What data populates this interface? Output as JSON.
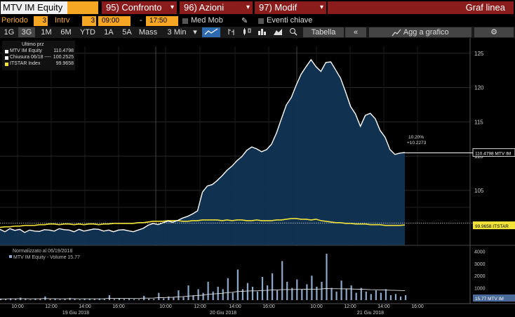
{
  "header": {
    "ticker": "MTV IM Equity",
    "menu_confronto": "95) Confronto",
    "menu_azioni": "96) Azioni",
    "menu_modif": "97) Modif",
    "title": "Graf linea"
  },
  "settings": {
    "periodo_label": "Periodo",
    "periodo_value": "3",
    "intrv_label": "Intrv",
    "intrv_value": "3",
    "start_time": "09:00",
    "dash": "-",
    "end_time": "17:50",
    "med_mob": "Med Mob",
    "eventi": "Eventi chiave"
  },
  "toolbar": {
    "periods": [
      "1G",
      "3G",
      "1M",
      "6M",
      "YTD",
      "1A",
      "5A",
      "Mass",
      "3 Min"
    ],
    "tabella": "Tabella",
    "back": "«",
    "agg": "Agg a grafico",
    "gear": "⚙"
  },
  "legend": {
    "header": "Ultimo prz",
    "items": [
      {
        "name": "MTV IM Equity",
        "value": "110.4798",
        "color": "#ffffff"
      },
      {
        "name": "Chiusura 06/18 ----",
        "value": "100.2525",
        "color": "#ffffff"
      },
      {
        "name": "ITSTAR Index",
        "value": "99.9658",
        "color": "#f2e33a"
      }
    ]
  },
  "lower_legend": {
    "line1": "Normalizzato al 06/19/2018",
    "line2": "MTV IM Equity - Volume 15.77"
  },
  "annotations": {
    "pct": "10.20%",
    "chg": "+10.2273",
    "mtv_tag": "110.4798 MTV IM",
    "itstar_tag": "99.9658  ITSTAR",
    "vol_tag": "15.77 MTV IM"
  },
  "chart_data": {
    "type": "line",
    "price_axis": {
      "ticks": [
        105,
        110,
        115,
        120,
        125
      ],
      "range": [
        97,
        126
      ]
    },
    "volume_axis": {
      "ticks": [
        1000,
        2000,
        3000,
        4000
      ],
      "range": [
        0,
        4200
      ]
    },
    "time_ticks": [
      "10:00",
      "12:00",
      "14:00",
      "16:00",
      "10:00",
      "12:00",
      "14:00",
      "16:00",
      "10:00",
      "12:00",
      "14:00",
      "16:00"
    ],
    "date_labels": [
      "19 Giu 2018",
      "20 Giu 2018",
      "21 Giu 2018"
    ],
    "series": [
      {
        "name": "MTV IM Equity",
        "color": "#ffffff",
        "fill": "#123454",
        "values": [
          99.3,
          99.0,
          99.4,
          99.2,
          99.3,
          98.9,
          99.2,
          99.1,
          99.0,
          99.3,
          99.2,
          99.1,
          99.4,
          99.3,
          99.2,
          99.0,
          99.3,
          99.1,
          99.2,
          99.4,
          99.3,
          99.1,
          99.2,
          99.0,
          99.2,
          99.3,
          99.1,
          99.0,
          99.2,
          99.5,
          99.9,
          100.2,
          100.0,
          100.3,
          100.5,
          100.4,
          100.6,
          101.0,
          101.2,
          101.6,
          102.0,
          104.8,
          105.6,
          105.9,
          106.4,
          107.2,
          107.9,
          108.6,
          109.3,
          110.0,
          110.8,
          111.4,
          111.0,
          110.7,
          110.9,
          111.8,
          113.3,
          115.5,
          117.4,
          118.6,
          120.3,
          122.0,
          123.0,
          124.1,
          123.0,
          122.4,
          123.6,
          123.8,
          122.5,
          121.4,
          119.3,
          117.3,
          116.1,
          114.4,
          115.9,
          116.3,
          115.4,
          113.8,
          112.7,
          111.0,
          110.2,
          110.5,
          110.4798
        ]
      },
      {
        "name": "ITSTAR Index",
        "color": "#f2e33a",
        "values": [
          99.6,
          99.7,
          99.7,
          99.8,
          99.8,
          99.9,
          99.9,
          99.9,
          100.0,
          100.0,
          100.1,
          100.1,
          100.0,
          100.1,
          100.1,
          100.0,
          100.1,
          100.0,
          100.1,
          100.1,
          100.0,
          100.1,
          100.1,
          100.2,
          100.2,
          100.2,
          100.2,
          100.2,
          100.3,
          100.3,
          100.4,
          100.5,
          100.5,
          100.5,
          100.6,
          100.6,
          100.6,
          100.5,
          100.5,
          100.6,
          100.6,
          100.7,
          100.7,
          100.7,
          100.7,
          100.6,
          100.7,
          100.6,
          100.7,
          100.7,
          100.6,
          100.6,
          100.7,
          100.6,
          100.6,
          100.6,
          100.7,
          100.7,
          100.8,
          100.9,
          100.9,
          100.8,
          100.8,
          100.7,
          100.8,
          100.6,
          100.5,
          100.4,
          100.3,
          100.3,
          100.2,
          100.2,
          100.1,
          100.1,
          100.1,
          100.0,
          100.0,
          100.0,
          99.9,
          99.9,
          99.9,
          99.9,
          99.9658
        ]
      }
    ],
    "prev_close": 100.2525,
    "volume": [
      120,
      80,
      150,
      90,
      200,
      110,
      60,
      140,
      90,
      300,
      80,
      120,
      70,
      100,
      180,
      90,
      60,
      130,
      100,
      80,
      120,
      90,
      400,
      100,
      150,
      90,
      110,
      80,
      70,
      350,
      120,
      90,
      600,
      150,
      300,
      200,
      800,
      250,
      1200,
      400,
      900,
      600,
      1500,
      700,
      1100,
      900,
      1800,
      600,
      2500,
      900,
      1400,
      1100,
      700,
      1900,
      1200,
      2200,
      800,
      3200,
      1500,
      1000,
      1700,
      900,
      1300,
      2000,
      1100,
      1500,
      3800,
      1000,
      700,
      1600,
      900,
      1200,
      600,
      1000,
      700,
      500,
      800,
      600,
      900,
      400,
      500,
      300,
      400
    ],
    "vol_avg": [
      100,
      100,
      110,
      110,
      120,
      120,
      110,
      110,
      110,
      130,
      120,
      120,
      110,
      110,
      120,
      120,
      110,
      110,
      110,
      110,
      110,
      110,
      150,
      150,
      150,
      140,
      140,
      130,
      130,
      160,
      160,
      160,
      200,
      200,
      220,
      230,
      270,
      280,
      330,
      350,
      380,
      400,
      470,
      500,
      530,
      560,
      620,
      640,
      700,
      720,
      740,
      760,
      760,
      790,
      800,
      830,
      830,
      860,
      870,
      870,
      880,
      880,
      890,
      900,
      900,
      910,
      950,
      940,
      930,
      930,
      920,
      920,
      900,
      890,
      880,
      860,
      850,
      840,
      830,
      810,
      800,
      790,
      780
    ]
  }
}
